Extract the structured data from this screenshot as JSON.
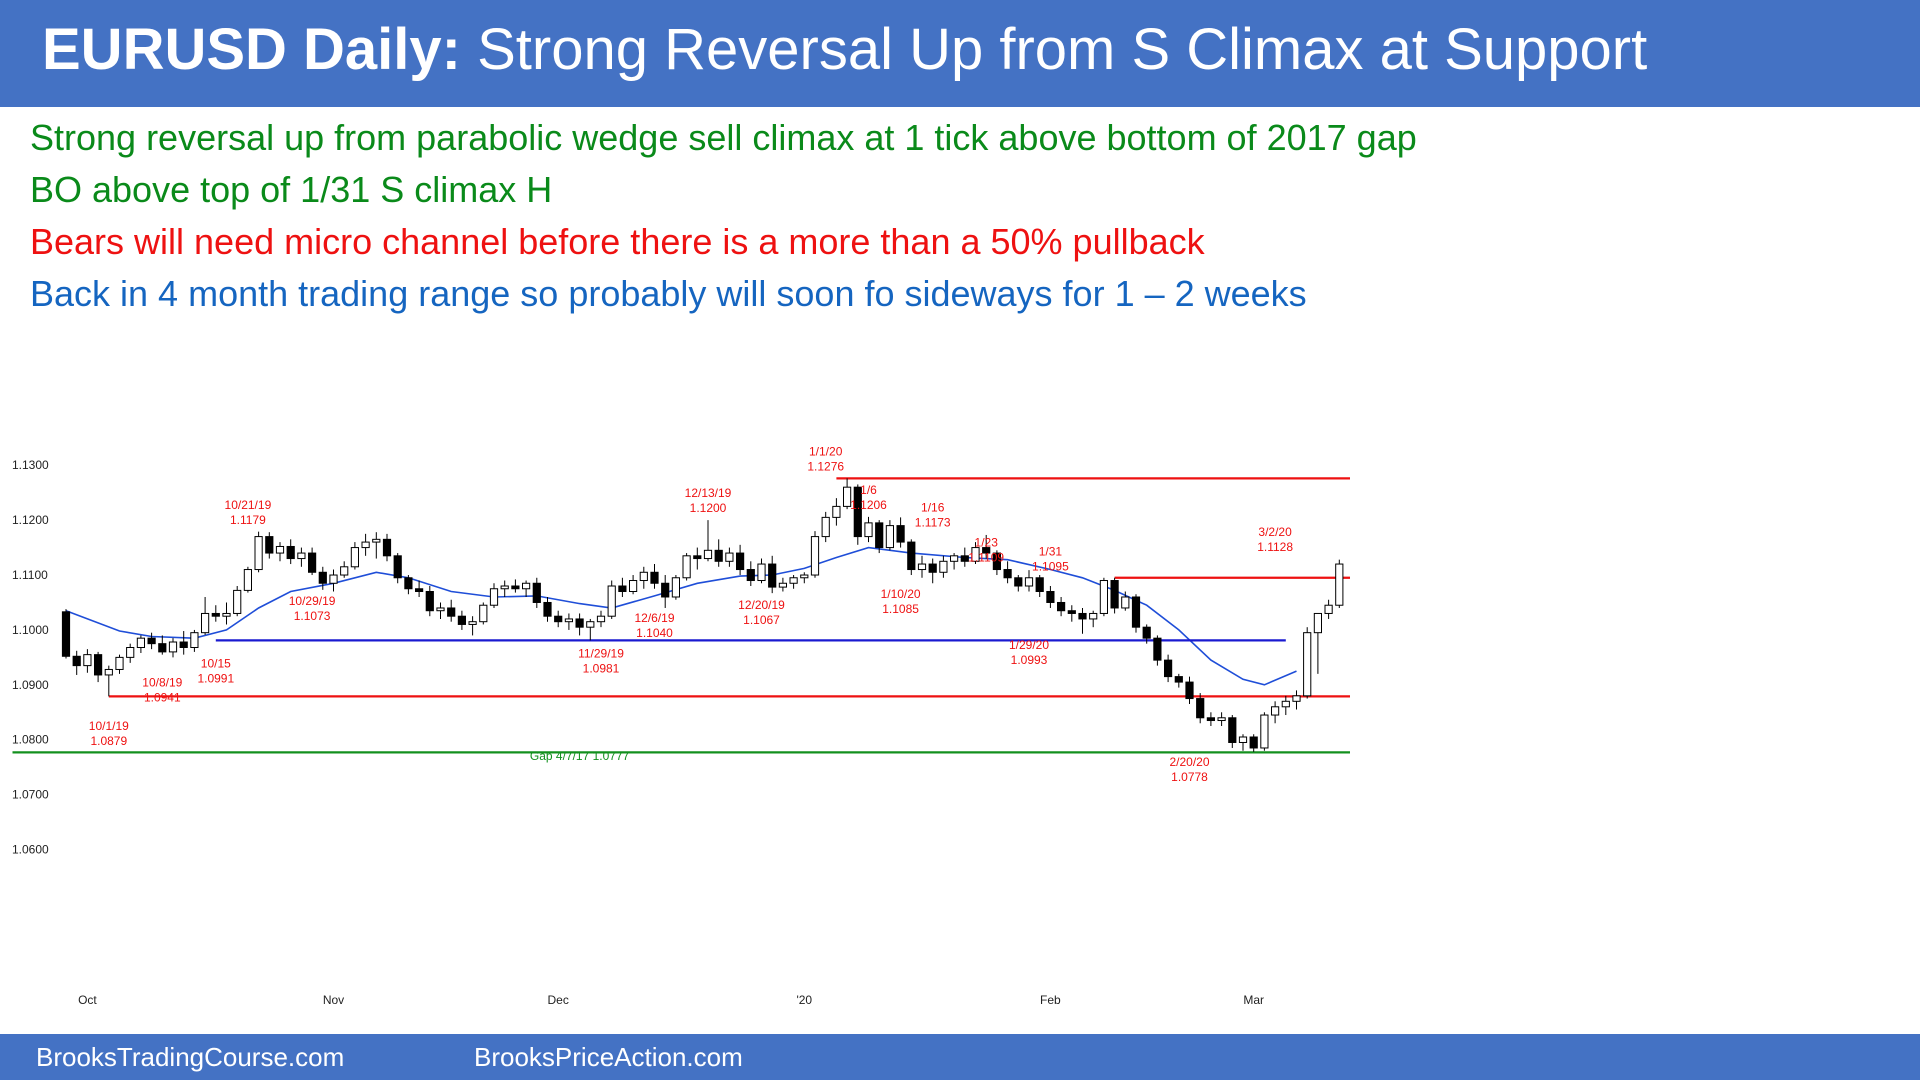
{
  "title": {
    "bold": "EURUSD Daily:",
    "rest": "Strong Reversal Up from S Climax at Support"
  },
  "bullets": [
    {
      "text": "Strong reversal up from parabolic wedge sell climax at 1 tick above bottom of 2017 gap",
      "color": "#0a8a1a"
    },
    {
      "text": "BO above top of 1/31 S climax H",
      "color": "#0a8a1a"
    },
    {
      "text": "Bears will need micro channel before there is a more than a 50% pullback",
      "color": "#ee1111"
    },
    {
      "text": "Back in 4 month trading range so probably will soon fo sideways for 1 – 2 weeks",
      "color": "#1565c0"
    }
  ],
  "footer": {
    "left": "BrooksTradingCourse.com",
    "right": "BrooksPriceAction.com"
  },
  "chart_data": {
    "type": "candlestick",
    "ylim": [
      1.055,
      1.1335
    ],
    "yticks": [
      "1.1300",
      "1.1200",
      "1.1100",
      "1.1000",
      "1.0900",
      "1.0800",
      "1.0700",
      "1.0600"
    ],
    "yaxis_side": "left",
    "xticks": [
      {
        "label": "Oct",
        "day": 2
      },
      {
        "label": "Nov",
        "day": 25
      },
      {
        "label": "Dec",
        "day": 46
      },
      {
        "label": "'20",
        "day": 69
      },
      {
        "label": "Feb",
        "day": 92
      },
      {
        "label": "Mar",
        "day": 111
      }
    ],
    "candles": [
      [
        1.1033,
        1.1038,
        1.0948,
        1.0952
      ],
      [
        1.0952,
        1.0962,
        1.0918,
        1.0935
      ],
      [
        1.0935,
        1.0965,
        1.0922,
        1.0955
      ],
      [
        1.0955,
        1.096,
        1.0905,
        1.0918
      ],
      [
        1.0918,
        1.0935,
        1.0879,
        1.0928
      ],
      [
        1.0928,
        1.0955,
        1.092,
        1.095
      ],
      [
        1.095,
        1.0975,
        1.094,
        1.0968
      ],
      [
        1.0968,
        1.099,
        1.0958,
        1.0985
      ],
      [
        1.0985,
        1.0995,
        1.0965,
        1.0975
      ],
      [
        1.0975,
        1.099,
        1.0955,
        1.096
      ],
      [
        1.096,
        1.0985,
        1.095,
        1.0978
      ],
      [
        1.0978,
        1.0998,
        1.0955,
        1.0968
      ],
      [
        1.0968,
        1.1,
        1.096,
        1.0995
      ],
      [
        1.0995,
        1.106,
        1.0991,
        1.103
      ],
      [
        1.103,
        1.1045,
        1.1015,
        1.1025
      ],
      [
        1.1025,
        1.105,
        1.101,
        1.103
      ],
      [
        1.103,
        1.108,
        1.1025,
        1.1072
      ],
      [
        1.1072,
        1.1115,
        1.1068,
        1.111
      ],
      [
        1.111,
        1.1179,
        1.1105,
        1.117
      ],
      [
        1.117,
        1.1178,
        1.113,
        1.114
      ],
      [
        1.114,
        1.116,
        1.1125,
        1.1152
      ],
      [
        1.1152,
        1.1165,
        1.112,
        1.113
      ],
      [
        1.113,
        1.115,
        1.1115,
        1.114
      ],
      [
        1.114,
        1.115,
        1.11,
        1.1105
      ],
      [
        1.1105,
        1.1115,
        1.1073,
        1.1085
      ],
      [
        1.1085,
        1.111,
        1.107,
        1.11
      ],
      [
        1.11,
        1.1125,
        1.1095,
        1.1115
      ],
      [
        1.1115,
        1.116,
        1.111,
        1.115
      ],
      [
        1.115,
        1.1175,
        1.1135,
        1.116
      ],
      [
        1.116,
        1.1178,
        1.113,
        1.1165
      ],
      [
        1.1165,
        1.1175,
        1.1125,
        1.1135
      ],
      [
        1.1135,
        1.114,
        1.1085,
        1.1095
      ],
      [
        1.1095,
        1.11,
        1.1065,
        1.1075
      ],
      [
        1.1075,
        1.109,
        1.106,
        1.107
      ],
      [
        1.107,
        1.108,
        1.1025,
        1.1035
      ],
      [
        1.1035,
        1.105,
        1.102,
        1.104
      ],
      [
        1.104,
        1.1055,
        1.1015,
        1.1025
      ],
      [
        1.1025,
        1.1035,
        1.1,
        1.101
      ],
      [
        1.101,
        1.1025,
        1.099,
        1.1015
      ],
      [
        1.1015,
        1.105,
        1.101,
        1.1045
      ],
      [
        1.1045,
        1.1085,
        1.104,
        1.1075
      ],
      [
        1.1075,
        1.109,
        1.106,
        1.108
      ],
      [
        1.108,
        1.1092,
        1.1068,
        1.1075
      ],
      [
        1.1075,
        1.109,
        1.106,
        1.1085
      ],
      [
        1.1085,
        1.1095,
        1.104,
        1.105
      ],
      [
        1.105,
        1.106,
        1.1015,
        1.1025
      ],
      [
        1.1025,
        1.1035,
        1.1005,
        1.1015
      ],
      [
        1.1015,
        1.103,
        1.1,
        1.102
      ],
      [
        1.102,
        1.103,
        1.099,
        1.1005
      ],
      [
        1.1005,
        1.102,
        1.0981,
        1.1015
      ],
      [
        1.1015,
        1.1035,
        1.1005,
        1.1025
      ],
      [
        1.1025,
        1.109,
        1.102,
        1.108
      ],
      [
        1.108,
        1.1095,
        1.106,
        1.107
      ],
      [
        1.107,
        1.11,
        1.1065,
        1.109
      ],
      [
        1.109,
        1.1115,
        1.1075,
        1.1105
      ],
      [
        1.1105,
        1.112,
        1.1075,
        1.1085
      ],
      [
        1.1085,
        1.11,
        1.104,
        1.106
      ],
      [
        1.106,
        1.11,
        1.1055,
        1.1095
      ],
      [
        1.1095,
        1.114,
        1.109,
        1.1135
      ],
      [
        1.1135,
        1.115,
        1.111,
        1.113
      ],
      [
        1.113,
        1.12,
        1.1125,
        1.1145
      ],
      [
        1.1145,
        1.1165,
        1.1115,
        1.1125
      ],
      [
        1.1125,
        1.115,
        1.1115,
        1.114
      ],
      [
        1.114,
        1.1155,
        1.11,
        1.111
      ],
      [
        1.111,
        1.1125,
        1.108,
        1.109
      ],
      [
        1.109,
        1.113,
        1.1085,
        1.112
      ],
      [
        1.112,
        1.1135,
        1.1067,
        1.1078
      ],
      [
        1.1078,
        1.1095,
        1.107,
        1.1085
      ],
      [
        1.1085,
        1.11,
        1.1075,
        1.1095
      ],
      [
        1.1095,
        1.1105,
        1.1085,
        1.11
      ],
      [
        1.11,
        1.118,
        1.1095,
        1.117
      ],
      [
        1.117,
        1.1215,
        1.116,
        1.1205
      ],
      [
        1.1205,
        1.124,
        1.119,
        1.1225
      ],
      [
        1.1225,
        1.1276,
        1.122,
        1.126
      ],
      [
        1.126,
        1.1265,
        1.1155,
        1.117
      ],
      [
        1.117,
        1.1206,
        1.116,
        1.1195
      ],
      [
        1.1195,
        1.12,
        1.114,
        1.115
      ],
      [
        1.115,
        1.12,
        1.1145,
        1.119
      ],
      [
        1.119,
        1.1205,
        1.115,
        1.116
      ],
      [
        1.116,
        1.1165,
        1.11,
        1.111
      ],
      [
        1.111,
        1.1135,
        1.1095,
        1.112
      ],
      [
        1.112,
        1.113,
        1.1085,
        1.1105
      ],
      [
        1.1105,
        1.1135,
        1.1095,
        1.1125
      ],
      [
        1.1125,
        1.114,
        1.111,
        1.1135
      ],
      [
        1.1135,
        1.115,
        1.1115,
        1.1125
      ],
      [
        1.1125,
        1.116,
        1.112,
        1.115
      ],
      [
        1.115,
        1.1173,
        1.113,
        1.114
      ],
      [
        1.114,
        1.1145,
        1.11,
        1.111
      ],
      [
        1.111,
        1.1125,
        1.1085,
        1.1095
      ],
      [
        1.1095,
        1.11,
        1.107,
        1.108
      ],
      [
        1.108,
        1.1109,
        1.107,
        1.1095
      ],
      [
        1.1095,
        1.11,
        1.106,
        1.107
      ],
      [
        1.107,
        1.108,
        1.104,
        1.105
      ],
      [
        1.105,
        1.106,
        1.1025,
        1.1035
      ],
      [
        1.1035,
        1.1045,
        1.1015,
        1.103
      ],
      [
        1.103,
        1.104,
        1.0993,
        1.102
      ],
      [
        1.102,
        1.1035,
        1.1005,
        1.103
      ],
      [
        1.103,
        1.1095,
        1.1025,
        1.109
      ],
      [
        1.109,
        1.1095,
        1.103,
        1.104
      ],
      [
        1.104,
        1.107,
        1.1035,
        1.106
      ],
      [
        1.106,
        1.1065,
        1.0995,
        1.1005
      ],
      [
        1.1005,
        1.101,
        1.0975,
        1.0985
      ],
      [
        1.0985,
        1.099,
        1.0935,
        1.0945
      ],
      [
        1.0945,
        1.0955,
        1.0905,
        1.0915
      ],
      [
        1.0915,
        1.092,
        1.0895,
        1.0905
      ],
      [
        1.0905,
        1.0915,
        1.0865,
        1.0875
      ],
      [
        1.0875,
        1.0885,
        1.083,
        1.084
      ],
      [
        1.084,
        1.085,
        1.0825,
        1.0835
      ],
      [
        1.0835,
        1.085,
        1.0825,
        1.084
      ],
      [
        1.084,
        1.0845,
        1.0785,
        1.0795
      ],
      [
        1.0795,
        1.081,
        1.078,
        1.0805
      ],
      [
        1.0805,
        1.081,
        1.0778,
        1.0785
      ],
      [
        1.0785,
        1.085,
        1.078,
        1.0845
      ],
      [
        1.0845,
        1.087,
        1.083,
        1.086
      ],
      [
        1.086,
        1.088,
        1.0845,
        1.087
      ],
      [
        1.087,
        1.089,
        1.0855,
        1.088
      ],
      [
        1.088,
        1.1005,
        1.0875,
        1.0995
      ],
      [
        1.0995,
        1.1025,
        1.092,
        1.103
      ],
      [
        1.103,
        1.1055,
        1.102,
        1.1045
      ],
      [
        1.1045,
        1.1128,
        1.104,
        1.112
      ]
    ],
    "moving_average": [
      [
        0,
        1.1035
      ],
      [
        5,
        1.0998
      ],
      [
        8,
        1.0988
      ],
      [
        12,
        1.0985
      ],
      [
        15,
        1.1
      ],
      [
        18,
        1.104
      ],
      [
        21,
        1.107
      ],
      [
        25,
        1.1085
      ],
      [
        29,
        1.1105
      ],
      [
        32,
        1.1095
      ],
      [
        36,
        1.107
      ],
      [
        40,
        1.106
      ],
      [
        44,
        1.1062
      ],
      [
        48,
        1.1048
      ],
      [
        51,
        1.104
      ],
      [
        55,
        1.1062
      ],
      [
        59,
        1.1085
      ],
      [
        63,
        1.1098
      ],
      [
        66,
        1.11
      ],
      [
        69,
        1.1112
      ],
      [
        72,
        1.1132
      ],
      [
        75,
        1.115
      ],
      [
        79,
        1.114
      ],
      [
        84,
        1.1132
      ],
      [
        88,
        1.1128
      ],
      [
        92,
        1.111
      ],
      [
        95,
        1.1095
      ],
      [
        98,
        1.1072
      ],
      [
        101,
        1.1045
      ],
      [
        104,
        1.1
      ],
      [
        107,
        1.0945
      ],
      [
        110,
        1.091
      ],
      [
        112,
        1.09
      ],
      [
        115,
        1.0925
      ]
    ],
    "horizontal_lines": [
      {
        "y": 1.1276,
        "x_start": 72,
        "x_end": 120,
        "color": "#ee1111"
      },
      {
        "y": 1.1095,
        "x_start": 98,
        "x_end": 120,
        "color": "#ee1111"
      },
      {
        "y": 1.0981,
        "x_start": 14,
        "x_end": 114,
        "color": "#1a1ad0"
      },
      {
        "y": 1.0879,
        "x_start": 4,
        "x_end": 120,
        "color": "#ee1111"
      },
      {
        "y": 1.0777,
        "x_start": -5,
        "x_end": 120,
        "color": "#13901e"
      }
    ],
    "annotations": [
      {
        "lines": [
          "10/1/19",
          "1.0879"
        ],
        "x": 4,
        "y": 1.0818,
        "color": "#ee1111"
      },
      {
        "lines": [
          "10/8/19",
          "1.0941"
        ],
        "x": 9,
        "y": 1.0897,
        "color": "#ee1111"
      },
      {
        "lines": [
          "10/15",
          "1.0991"
        ],
        "x": 14,
        "y": 1.0932,
        "color": "#ee1111"
      },
      {
        "lines": [
          "10/21/19",
          "1.1179"
        ],
        "x": 17,
        "y": 1.122,
        "color": "#ee1111"
      },
      {
        "lines": [
          "10/29/19",
          "1.1073"
        ],
        "x": 23,
        "y": 1.1045,
        "color": "#ee1111"
      },
      {
        "lines": [
          "11/29/19",
          "1.0981"
        ],
        "x": 50,
        "y": 1.095,
        "color": "#ee1111"
      },
      {
        "lines": [
          "12/6/19",
          "1.1040"
        ],
        "x": 55,
        "y": 1.1014,
        "color": "#ee1111"
      },
      {
        "lines": [
          "12/13/19",
          "1.1200"
        ],
        "x": 60,
        "y": 1.1242,
        "color": "#ee1111"
      },
      {
        "lines": [
          "12/20/19",
          "1.1067"
        ],
        "x": 65,
        "y": 1.1038,
        "color": "#ee1111"
      },
      {
        "lines": [
          "1/1/20",
          "1.1276"
        ],
        "x": 71,
        "y": 1.1318,
        "color": "#ee1111"
      },
      {
        "lines": [
          "1/6",
          "1.1206"
        ],
        "x": 75,
        "y": 1.1248,
        "color": "#ee1111"
      },
      {
        "lines": [
          "1/10/20",
          "1.1085"
        ],
        "x": 78,
        "y": 1.1058,
        "color": "#ee1111"
      },
      {
        "lines": [
          "1/16",
          "1.1173"
        ],
        "x": 81,
        "y": 1.1216,
        "color": "#ee1111"
      },
      {
        "lines": [
          "1/23",
          "1.1109"
        ],
        "x": 86,
        "y": 1.1152,
        "color": "#ee1111"
      },
      {
        "lines": [
          "1/29/20",
          "1.0993"
        ],
        "x": 90,
        "y": 1.0965,
        "color": "#ee1111"
      },
      {
        "lines": [
          "1/31",
          "1.1095"
        ],
        "x": 92,
        "y": 1.1136,
        "color": "#ee1111"
      },
      {
        "lines": [
          "2/20/20",
          "1.0778"
        ],
        "x": 105,
        "y": 1.0752,
        "color": "#ee1111"
      },
      {
        "lines": [
          "3/2/20",
          "1.1128"
        ],
        "x": 113,
        "y": 1.1171,
        "color": "#ee1111"
      },
      {
        "lines": [
          "Gap 4/7/17 1.0777"
        ],
        "x": 48,
        "y": 1.0763,
        "color": "#13901e"
      }
    ]
  }
}
